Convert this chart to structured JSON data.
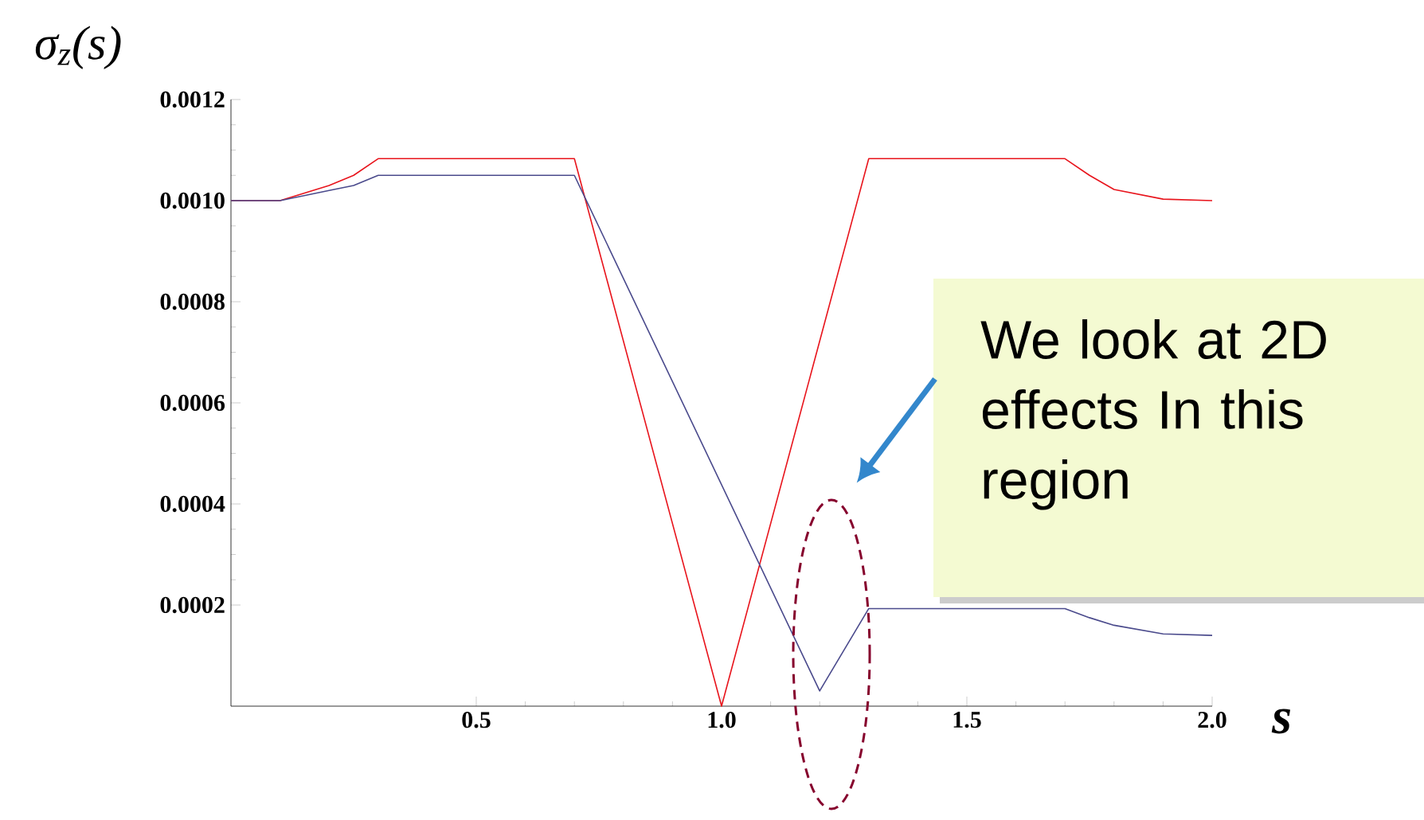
{
  "chart_data": {
    "type": "line",
    "ylabel": "σ$_{z}$(s)",
    "xlabel": "s",
    "annotations": [
      "We look at 2D effects In this region"
    ],
    "xlim": [
      0,
      2
    ],
    "ylim": [
      0,
      0.0012
    ],
    "xticks": [
      0.5,
      {
        "value": 1,
        "label": "1.0"
      },
      1.5,
      {
        "value": 2,
        "label": "2.0"
      }
    ],
    "yticks": [
      0.0002,
      0.0004,
      0.0006,
      0.0008,
      {
        "value": 0.001,
        "label": "0.0010"
      },
      0.0012
    ],
    "grid": false,
    "series": [
      {
        "color": "#e8141c",
        "x": [
          0,
          0.1,
          0.2,
          0.25,
          0.3,
          0.7,
          1.0,
          1.3,
          1.7,
          1.75,
          1.8,
          1.9,
          2.0
        ],
        "values": [
          0.001,
          0.001,
          0.00103,
          0.00105,
          0.001083,
          0.001083,
          0.0,
          0.001083,
          0.001083,
          0.00105,
          0.001022,
          0.001003,
          0.001
        ]
      },
      {
        "color": "#4a4a8c",
        "x": [
          0,
          0.1,
          0.2,
          0.25,
          0.3,
          0.7,
          1.2,
          1.3,
          1.7,
          1.75,
          1.8,
          1.9,
          2.0
        ],
        "values": [
          0.001,
          0.001,
          0.00102,
          0.00103,
          0.00105,
          0.00105,
          3e-05,
          0.000193,
          0.000193,
          0.000175,
          0.00016,
          0.000143,
          0.00014
        ]
      }
    ]
  }
}
